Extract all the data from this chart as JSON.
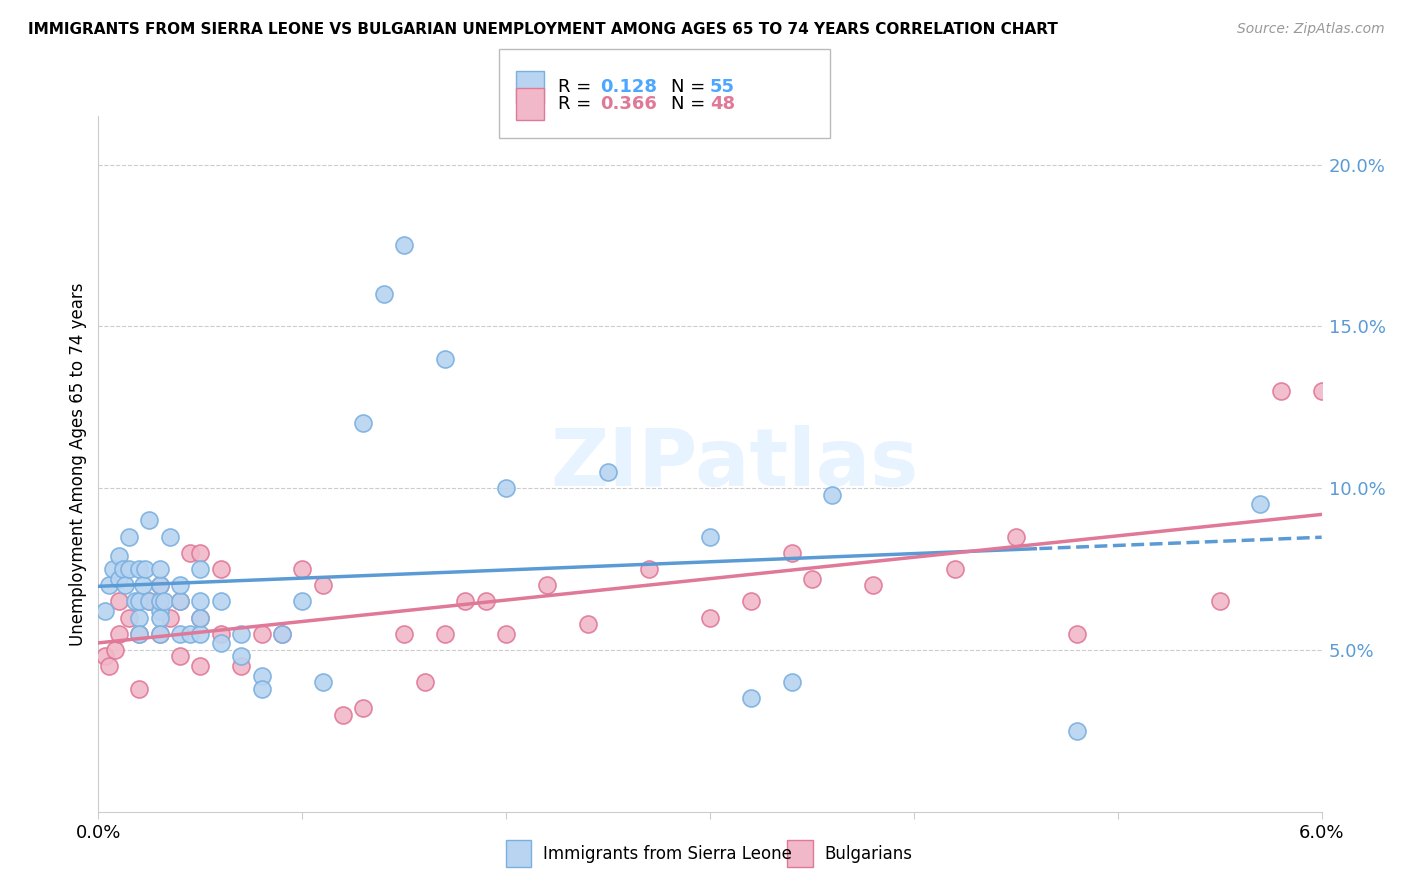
{
  "title": "IMMIGRANTS FROM SIERRA LEONE VS BULGARIAN UNEMPLOYMENT AMONG AGES 65 TO 74 YEARS CORRELATION CHART",
  "source": "Source: ZipAtlas.com",
  "ylabel": "Unemployment Among Ages 65 to 74 years",
  "xlim": [
    0.0,
    0.06
  ],
  "ylim": [
    0.0,
    0.215
  ],
  "xtick_positions": [
    0.0,
    0.01,
    0.02,
    0.03,
    0.04,
    0.05,
    0.06
  ],
  "xtick_labels": [
    "0.0%",
    "",
    "",
    "",
    "",
    "",
    "6.0%"
  ],
  "yticks_right": [
    0.05,
    0.1,
    0.15,
    0.2
  ],
  "ytick_labels_right": [
    "5.0%",
    "10.0%",
    "15.0%",
    "20.0%"
  ],
  "color_blue_fill": "#b8d4f0",
  "color_blue_edge": "#7ab0e0",
  "color_pink_fill": "#f0b8c8",
  "color_pink_edge": "#e07898",
  "color_trend_blue": "#5b9bd5",
  "color_trend_pink": "#e07898",
  "color_grid": "#cccccc",
  "watermark": "ZIPatlas",
  "watermark_color": "#ddeeff",
  "legend_label1": "Immigrants from Sierra Leone",
  "legend_label2": "Bulgarians",
  "trend_split_blue": 0.046,
  "blue_x": [
    0.0003,
    0.0005,
    0.0007,
    0.001,
    0.001,
    0.0012,
    0.0013,
    0.0015,
    0.0015,
    0.0018,
    0.002,
    0.002,
    0.002,
    0.002,
    0.0022,
    0.0023,
    0.0025,
    0.0025,
    0.003,
    0.003,
    0.003,
    0.003,
    0.003,
    0.003,
    0.0032,
    0.0035,
    0.004,
    0.004,
    0.004,
    0.0045,
    0.005,
    0.005,
    0.005,
    0.005,
    0.006,
    0.006,
    0.007,
    0.007,
    0.008,
    0.008,
    0.009,
    0.01,
    0.011,
    0.013,
    0.014,
    0.015,
    0.017,
    0.02,
    0.025,
    0.03,
    0.032,
    0.034,
    0.036,
    0.048,
    0.057
  ],
  "blue_y": [
    0.062,
    0.07,
    0.075,
    0.072,
    0.079,
    0.075,
    0.07,
    0.075,
    0.085,
    0.065,
    0.06,
    0.065,
    0.055,
    0.075,
    0.07,
    0.075,
    0.065,
    0.09,
    0.062,
    0.06,
    0.065,
    0.055,
    0.07,
    0.075,
    0.065,
    0.085,
    0.055,
    0.065,
    0.07,
    0.055,
    0.055,
    0.06,
    0.065,
    0.075,
    0.052,
    0.065,
    0.048,
    0.055,
    0.042,
    0.038,
    0.055,
    0.065,
    0.04,
    0.12,
    0.16,
    0.175,
    0.14,
    0.1,
    0.105,
    0.085,
    0.035,
    0.04,
    0.098,
    0.025,
    0.095
  ],
  "pink_x": [
    0.0003,
    0.0005,
    0.0008,
    0.001,
    0.001,
    0.0015,
    0.002,
    0.002,
    0.0025,
    0.003,
    0.003,
    0.003,
    0.0035,
    0.004,
    0.004,
    0.0045,
    0.005,
    0.005,
    0.005,
    0.006,
    0.006,
    0.007,
    0.008,
    0.009,
    0.01,
    0.011,
    0.012,
    0.013,
    0.015,
    0.016,
    0.017,
    0.018,
    0.019,
    0.02,
    0.022,
    0.024,
    0.027,
    0.03,
    0.032,
    0.034,
    0.035,
    0.038,
    0.042,
    0.045,
    0.048,
    0.055,
    0.058,
    0.06
  ],
  "pink_y": [
    0.048,
    0.045,
    0.05,
    0.055,
    0.065,
    0.06,
    0.038,
    0.055,
    0.065,
    0.055,
    0.065,
    0.07,
    0.06,
    0.048,
    0.065,
    0.08,
    0.045,
    0.06,
    0.08,
    0.055,
    0.075,
    0.045,
    0.055,
    0.055,
    0.075,
    0.07,
    0.03,
    0.032,
    0.055,
    0.04,
    0.055,
    0.065,
    0.065,
    0.055,
    0.07,
    0.058,
    0.075,
    0.06,
    0.065,
    0.08,
    0.072,
    0.07,
    0.075,
    0.085,
    0.055,
    0.065,
    0.13,
    0.13
  ]
}
